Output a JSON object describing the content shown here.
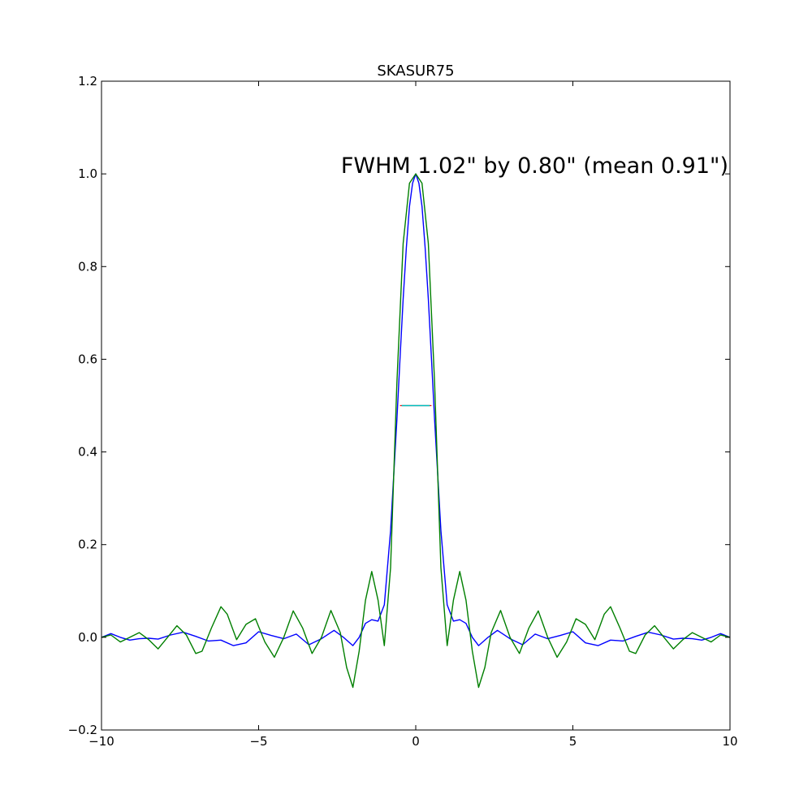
{
  "chart_data": {
    "type": "line",
    "title": "SKASUR75",
    "xlabel": "",
    "ylabel": "",
    "xlim": [
      -10,
      10
    ],
    "ylim": [
      -0.2,
      1.2
    ],
    "x_ticks": [
      -10,
      -5,
      0,
      5,
      10
    ],
    "x_tick_labels": [
      "−10",
      "−5",
      "0",
      "5",
      "10"
    ],
    "y_ticks": [
      -0.2,
      0.0,
      0.2,
      0.4,
      0.6,
      0.8,
      1.0,
      1.2
    ],
    "y_tick_labels": [
      "−0.2",
      "0.0",
      "0.2",
      "0.4",
      "0.6",
      "0.8",
      "1.0",
      "1.2"
    ],
    "grid": false,
    "annotation": {
      "text": "FWHM 1.02\" by 0.80\" (mean 0.91\")",
      "x": 10,
      "y": 1.0
    },
    "fwhm_marker": {
      "y": 0.5,
      "x_range": [
        -0.5,
        0.5
      ],
      "colors": [
        "#ff0000",
        "#00bfbf",
        "#00bfbf"
      ]
    },
    "series": [
      {
        "color": "#0000ff",
        "x": [
          -10,
          -9.7,
          -9.4,
          -9.1,
          -8.8,
          -8.5,
          -8.2,
          -7.8,
          -7.4,
          -7.0,
          -6.6,
          -6.2,
          -5.8,
          -5.4,
          -5.0,
          -4.6,
          -4.2,
          -3.8,
          -3.4,
          -3.0,
          -2.6,
          -2.3,
          -2.0,
          -1.8,
          -1.6,
          -1.4,
          -1.2,
          -1.0,
          -0.8,
          -0.6,
          -0.5,
          -0.4,
          -0.3,
          -0.2,
          -0.1,
          0.0,
          0.1,
          0.2,
          0.3,
          0.4,
          0.5,
          0.6,
          0.8,
          1.0,
          1.2,
          1.4,
          1.6,
          1.8,
          2.0,
          2.3,
          2.6,
          3.0,
          3.4,
          3.8,
          4.2,
          4.6,
          5.0,
          5.4,
          5.8,
          6.2,
          6.6,
          7.0,
          7.4,
          7.8,
          8.2,
          8.5,
          8.8,
          9.1,
          9.4,
          9.7,
          10
        ],
        "y": [
          0.0,
          0.008,
          0.0,
          -0.006,
          -0.003,
          -0.002,
          -0.004,
          0.005,
          0.011,
          0.002,
          -0.008,
          -0.006,
          -0.018,
          -0.012,
          0.012,
          0.004,
          -0.003,
          0.007,
          -0.016,
          -0.003,
          0.015,
          0.0,
          -0.018,
          0.0,
          0.03,
          0.038,
          0.035,
          0.07,
          0.23,
          0.47,
          0.6,
          0.73,
          0.84,
          0.93,
          0.98,
          1.0,
          0.98,
          0.93,
          0.84,
          0.73,
          0.6,
          0.47,
          0.23,
          0.07,
          0.035,
          0.038,
          0.03,
          0.0,
          -0.018,
          0.0,
          0.015,
          -0.003,
          -0.016,
          0.007,
          -0.003,
          0.004,
          0.012,
          -0.012,
          -0.018,
          -0.006,
          -0.008,
          0.002,
          0.011,
          0.005,
          -0.004,
          -0.002,
          -0.003,
          -0.006,
          0.0,
          0.008,
          0.0
        ]
      },
      {
        "color": "#007f00",
        "x": [
          -10,
          -9.7,
          -9.4,
          -9.1,
          -8.8,
          -8.5,
          -8.2,
          -7.9,
          -7.6,
          -7.3,
          -7.0,
          -6.8,
          -6.5,
          -6.2,
          -6.0,
          -5.7,
          -5.4,
          -5.1,
          -4.8,
          -4.5,
          -4.2,
          -3.9,
          -3.6,
          -3.3,
          -3.0,
          -2.7,
          -2.4,
          -2.2,
          -2.0,
          -1.8,
          -1.6,
          -1.4,
          -1.2,
          -1.0,
          -0.8,
          -0.6,
          -0.4,
          -0.2,
          0.0,
          0.2,
          0.4,
          0.6,
          0.8,
          1.0,
          1.2,
          1.4,
          1.6,
          1.8,
          2.0,
          2.2,
          2.4,
          2.7,
          3.0,
          3.3,
          3.6,
          3.9,
          4.2,
          4.5,
          4.8,
          5.1,
          5.4,
          5.7,
          6.0,
          6.2,
          6.5,
          6.8,
          7.0,
          7.3,
          7.6,
          7.9,
          8.2,
          8.5,
          8.8,
          9.1,
          9.4,
          9.7,
          10
        ],
        "y": [
          0.0,
          0.005,
          -0.01,
          0.0,
          0.01,
          -0.005,
          -0.025,
          0.0,
          0.025,
          0.005,
          -0.035,
          -0.03,
          0.02,
          0.066,
          0.05,
          -0.005,
          0.028,
          0.04,
          -0.01,
          -0.043,
          0.0,
          0.057,
          0.02,
          -0.035,
          0.0,
          0.058,
          0.01,
          -0.065,
          -0.108,
          -0.03,
          0.08,
          0.142,
          0.08,
          -0.018,
          0.15,
          0.55,
          0.85,
          0.98,
          1.0,
          0.98,
          0.85,
          0.55,
          0.15,
          -0.018,
          0.08,
          0.142,
          0.08,
          -0.03,
          -0.108,
          -0.065,
          0.01,
          0.058,
          0.0,
          -0.035,
          0.02,
          0.057,
          0.0,
          -0.043,
          -0.01,
          0.04,
          0.028,
          -0.005,
          0.05,
          0.066,
          0.02,
          -0.03,
          -0.035,
          0.005,
          0.025,
          0.0,
          -0.025,
          -0.005,
          0.01,
          0.0,
          -0.01,
          0.005,
          0.0
        ]
      }
    ]
  }
}
